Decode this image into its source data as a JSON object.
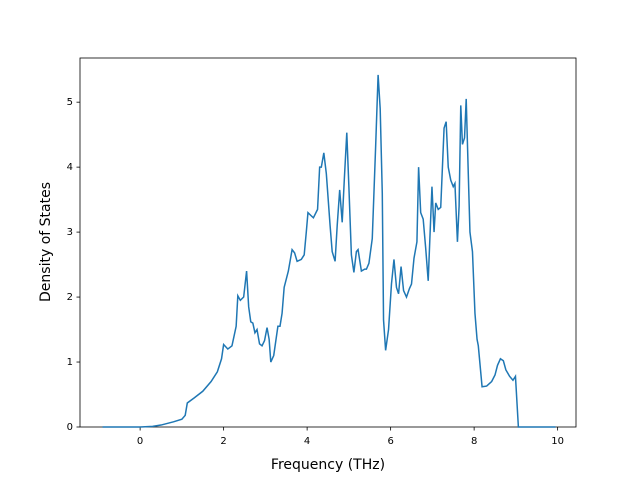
{
  "chart_data": {
    "type": "line",
    "x_label": "Frequency (THz)",
    "y_label": "Density of States",
    "color": "#1f77b4",
    "x": [
      -0.9,
      0,
      0.3,
      0.5,
      0.8,
      1.0,
      1.08,
      1.13,
      1.3,
      1.5,
      1.7,
      1.85,
      1.95,
      2.0,
      2.1,
      2.2,
      2.3,
      2.34,
      2.4,
      2.48,
      2.55,
      2.6,
      2.65,
      2.7,
      2.75,
      2.8,
      2.86,
      2.92,
      2.98,
      3.04,
      3.09,
      3.13,
      3.2,
      3.3,
      3.35,
      3.4,
      3.45,
      3.55,
      3.64,
      3.7,
      3.76,
      3.86,
      3.93,
      3.98,
      4.02,
      4.1,
      4.15,
      4.25,
      4.3,
      4.34,
      4.4,
      4.46,
      4.55,
      4.6,
      4.67,
      4.72,
      4.78,
      4.84,
      4.89,
      4.95,
      5.0,
      5.06,
      5.12,
      5.18,
      5.22,
      5.3,
      5.38,
      5.42,
      5.48,
      5.56,
      5.6,
      5.64,
      5.7,
      5.75,
      5.8,
      5.83,
      5.88,
      5.95,
      6.02,
      6.08,
      6.14,
      6.19,
      6.25,
      6.31,
      6.38,
      6.45,
      6.5,
      6.56,
      6.63,
      6.67,
      6.72,
      6.78,
      6.84,
      6.9,
      6.94,
      6.99,
      7.04,
      7.08,
      7.14,
      7.2,
      7.28,
      7.33,
      7.38,
      7.44,
      7.5,
      7.54,
      7.6,
      7.64,
      7.68,
      7.72,
      7.77,
      7.81,
      7.86,
      7.9,
      7.96,
      8.02,
      8.07,
      8.1,
      8.19,
      8.3,
      8.42,
      8.5,
      8.56,
      8.63,
      8.7,
      8.76,
      8.85,
      8.93,
      8.99,
      9.06,
      9.5,
      9.95
    ],
    "values": [
      0,
      0,
      0.01,
      0.03,
      0.08,
      0.12,
      0.18,
      0.37,
      0.45,
      0.55,
      0.7,
      0.85,
      1.05,
      1.27,
      1.2,
      1.25,
      1.55,
      2.02,
      1.95,
      2.0,
      2.4,
      1.85,
      1.62,
      1.6,
      1.45,
      1.5,
      1.28,
      1.25,
      1.33,
      1.53,
      1.35,
      1.0,
      1.1,
      1.55,
      1.55,
      1.75,
      2.15,
      2.4,
      2.73,
      2.68,
      2.55,
      2.58,
      2.65,
      3.0,
      3.3,
      3.25,
      3.22,
      3.35,
      4.0,
      4.0,
      4.22,
      3.9,
      3.1,
      2.7,
      2.55,
      3.1,
      3.65,
      3.15,
      3.8,
      4.53,
      3.7,
      2.65,
      2.38,
      2.7,
      2.73,
      2.4,
      2.43,
      2.43,
      2.52,
      2.9,
      3.6,
      4.3,
      5.42,
      4.9,
      3.6,
      1.65,
      1.18,
      1.5,
      2.2,
      2.58,
      2.15,
      2.05,
      2.47,
      2.1,
      2.0,
      2.13,
      2.2,
      2.6,
      2.85,
      4.0,
      3.3,
      3.2,
      2.75,
      2.25,
      2.9,
      3.7,
      3.0,
      3.45,
      3.35,
      3.38,
      4.6,
      4.7,
      4.0,
      3.8,
      3.7,
      3.75,
      2.85,
      3.4,
      4.95,
      4.35,
      4.45,
      5.05,
      3.9,
      3.0,
      2.7,
      1.75,
      1.35,
      1.25,
      0.62,
      0.63,
      0.7,
      0.8,
      0.95,
      1.05,
      1.02,
      0.88,
      0.78,
      0.72,
      0.78,
      0,
      0,
      0
    ],
    "xlim": [
      -1.44,
      10.44
    ],
    "xticks": [
      0,
      2,
      4,
      6,
      8,
      10
    ],
    "ylim": [
      0,
      5.68
    ],
    "yticks": [
      0,
      1,
      2,
      3,
      4,
      5
    ]
  }
}
